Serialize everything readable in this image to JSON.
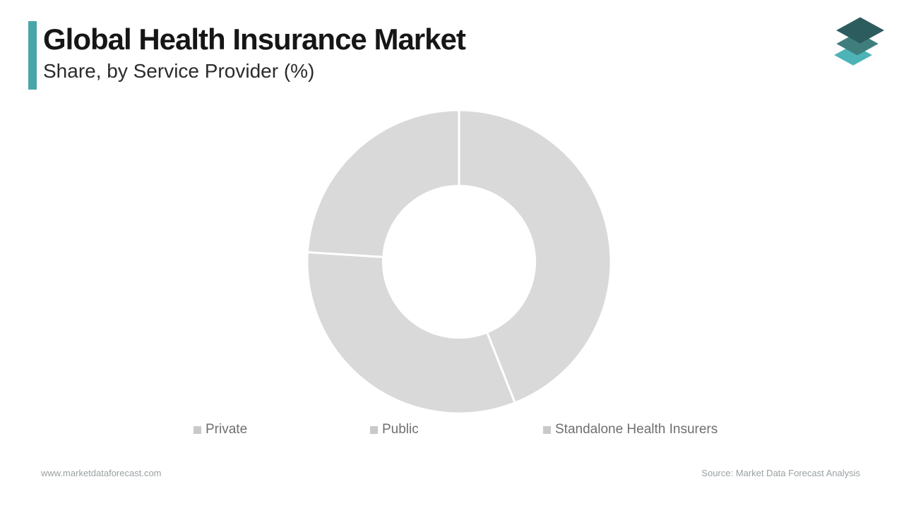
{
  "header": {
    "title": "Global Health Insurance Market",
    "subtitle": "Share, by Service Provider (%)",
    "accent_color": "#4aa5a8"
  },
  "logo": {
    "name": "market-data-forecast-layers-logo",
    "layer_colors": [
      "#2d5c5e",
      "#3f7e7d",
      "#4db3b7"
    ]
  },
  "chart_data": {
    "type": "pie",
    "variant": "donut",
    "title": "Global Health Insurance Market Share, by Service Provider (%)",
    "categories": [
      "Private",
      "Public",
      "Standalone Health Insurers"
    ],
    "values": [
      44,
      32,
      24
    ],
    "units": "%",
    "start_angle_deg": 0,
    "direction": "clockwise",
    "inner_radius_ratio": 0.5,
    "slice_colors": [
      "#d9d9d9",
      "#d9d9d9",
      "#d9d9d9"
    ],
    "separator_color": "#ffffff",
    "legend_position": "bottom",
    "legend_marker_color": "#c9c9c9",
    "legend_text_color": "#6f6f6f",
    "data_labels_shown": false
  },
  "footer": {
    "website": "www.marketdataforecast.com",
    "source": "Source: Market Data Forecast Analysis"
  }
}
